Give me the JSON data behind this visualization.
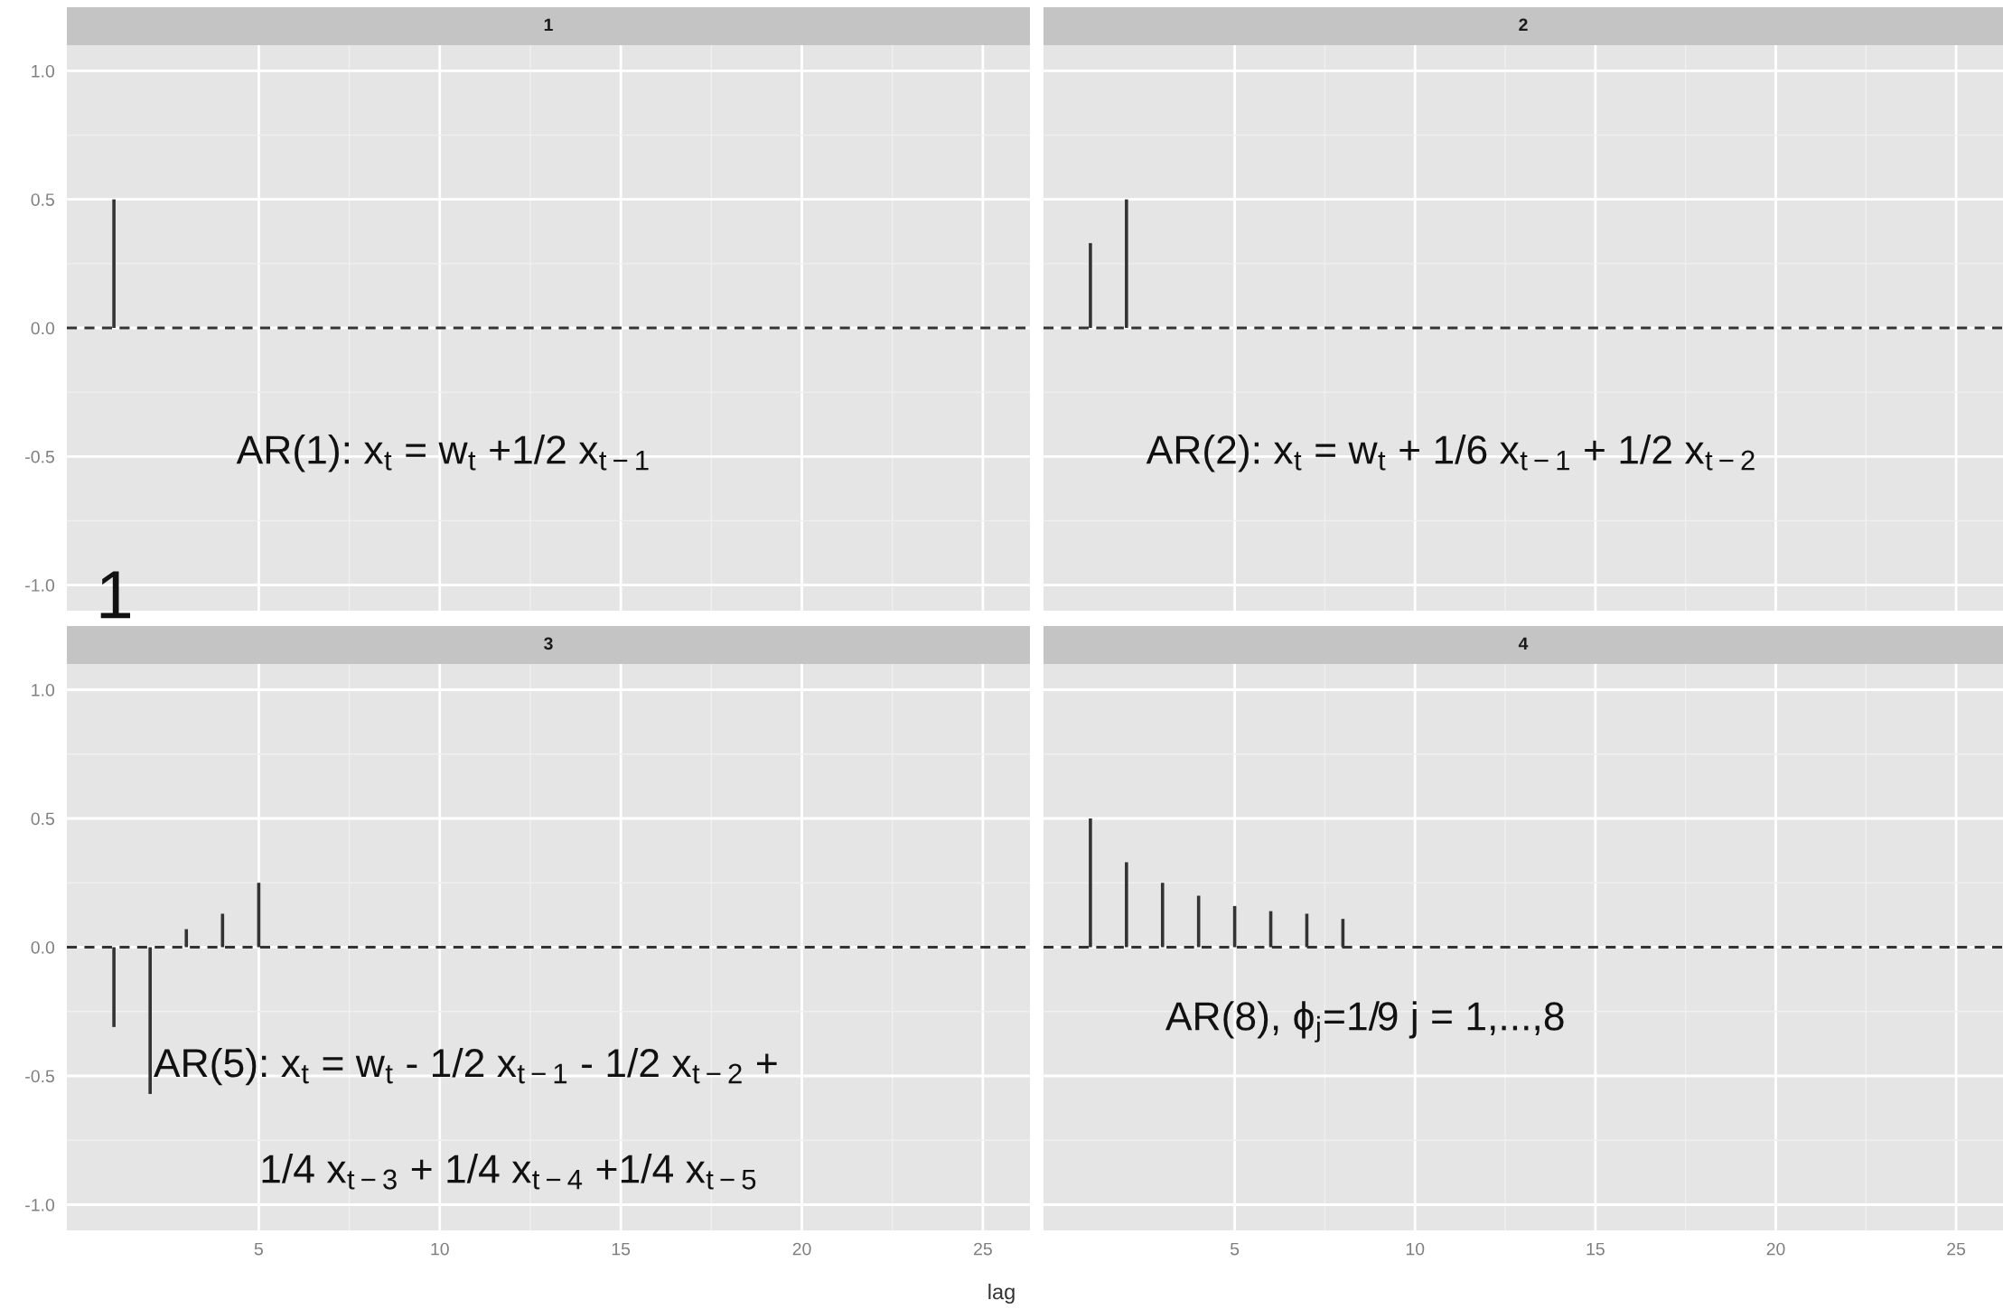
{
  "chart_data": [
    {
      "type": "bar",
      "title": "1",
      "x": [
        1
      ],
      "series": [
        {
          "color": "#333333",
          "values": [
            0.5
          ]
        }
      ],
      "xlim": [
        -0.3,
        26.3
      ],
      "xticks": [
        5,
        10,
        15,
        20,
        25
      ],
      "ylim": [
        -1.1,
        1.1
      ],
      "yticks": [
        {
          "value": 1.0,
          "label": "1.0"
        },
        {
          "value": 0.5,
          "label": "0.5"
        },
        {
          "value": 0.0,
          "label": "0.0"
        },
        {
          "value": -0.5,
          "label": "-0.5"
        },
        {
          "value": -1.0,
          "label": "-1.0"
        }
      ],
      "tick_labels": "y",
      "grid": true,
      "ref_lines": [
        {
          "axis": "y",
          "value": 0,
          "line_style": "dashed",
          "color": "#333333"
        }
      ],
      "annotations": [
        "AR(1): x$_{t}$ = w$_{t}$ +1/2 x$_{t−1}$",
        "1"
      ]
    },
    {
      "type": "bar",
      "title": "2",
      "x": [
        1,
        2
      ],
      "series": [
        {
          "color": "#333333",
          "values": [
            0.33,
            0.5
          ]
        }
      ],
      "xlim": [
        -0.3,
        26.3
      ],
      "xticks": [
        5,
        10,
        15,
        20,
        25
      ],
      "ylim": [
        -1.1,
        1.1
      ],
      "yticks": [
        1,
        0.5,
        0,
        -0.5,
        -1
      ],
      "tick_labels": false,
      "grid": true,
      "ref_lines": [
        {
          "axis": "y",
          "value": 0,
          "line_style": "dashed",
          "color": "#333333"
        }
      ],
      "annotations": [
        "AR(2): x$_{t}$ = w$_{t}$ + 1/6 x$_{t−1}$ + 1/2 x$_{t−2}$"
      ]
    },
    {
      "type": "bar",
      "title": "3",
      "x": [
        1,
        2,
        3,
        4,
        5
      ],
      "series": [
        {
          "color": "#333333",
          "values": [
            -0.31,
            -0.57,
            0.07,
            0.13,
            0.25
          ]
        }
      ],
      "xlim": [
        -0.3,
        26.3
      ],
      "xticks": [
        5,
        10,
        15,
        20,
        25
      ],
      "ylim": [
        -1.1,
        1.1
      ],
      "yticks": [
        {
          "value": 1.0,
          "label": "1.0"
        },
        {
          "value": 0.5,
          "label": "0.5"
        },
        {
          "value": 0.0,
          "label": "0.0"
        },
        {
          "value": -0.5,
          "label": "-0.5"
        },
        {
          "value": -1.0,
          "label": "-1.0"
        }
      ],
      "grid": true,
      "ref_lines": [
        {
          "axis": "y",
          "value": 0,
          "line_style": "dashed",
          "color": "#333333"
        }
      ],
      "annotations": [
        "AR(5): x$_{t}$ = w$_{t}$ - 1/2 x$_{t−1}$ - 1/2 x$_{t−2}$ +",
        "1/4 x$_{t−3}$ + 1/4 x$_{t−4}$ +1/4 x$_{t−5}$"
      ]
    },
    {
      "type": "bar",
      "title": "4",
      "xlabel": "lag",
      "x": [
        1,
        2,
        3,
        4,
        5,
        6,
        7,
        8
      ],
      "series": [
        {
          "color": "#333333",
          "values": [
            0.5,
            0.33,
            0.25,
            0.2,
            0.16,
            0.14,
            0.13,
            0.11
          ]
        }
      ],
      "xlim": [
        -0.3,
        26.3
      ],
      "xticks": [
        5,
        10,
        15,
        20,
        25
      ],
      "ylim": [
        -1.1,
        1.1
      ],
      "yticks": [
        1,
        0.5,
        0,
        -0.5,
        -1
      ],
      "tick_labels": "x",
      "grid": true,
      "ref_lines": [
        {
          "axis": "y",
          "value": 0,
          "line_style": "dashed",
          "color": "#333333"
        }
      ],
      "annotations": [
        "AR(8), ϕ$_{j}$=1/9 j = 1,...,8"
      ]
    }
  ]
}
